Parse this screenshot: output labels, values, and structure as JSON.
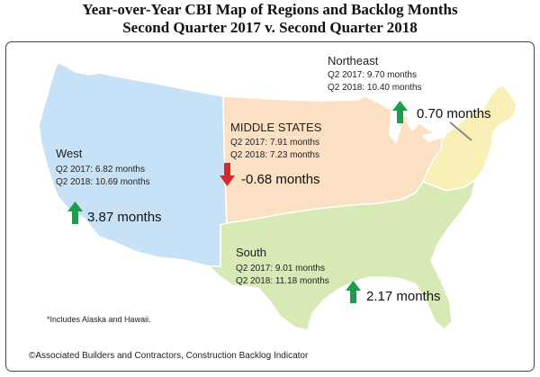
{
  "title": {
    "line1": "Year-over-Year CBI Map of Regions and Backlog Months",
    "line2": "Second Quarter 2017 v. Second Quarter 2018"
  },
  "regions": {
    "west": {
      "name": "West",
      "q2_2017": "Q2 2017:  6.82 months",
      "q2_2018": "Q2 2018:  10.69 months",
      "change": "3.87 months",
      "direction": "up",
      "color": "#c7e2f6"
    },
    "middle": {
      "name": "MIDDLE STATES",
      "q2_2017": "Q2 2017:  7.91 months",
      "q2_2018": "Q2 2018:  7.23 months",
      "change": "-0.68 months",
      "direction": "down",
      "color": "#fbe0c4"
    },
    "northeast": {
      "name": "Northeast",
      "q2_2017": "Q2 2017:  9.70 months",
      "q2_2018": "Q2 2018:  10.40 months",
      "change": "0.70 months",
      "direction": "up",
      "color": "#f8f0b6"
    },
    "south": {
      "name": "South",
      "q2_2017": "Q2 2017:  9.01 months",
      "q2_2018": "Q2 2018:  11.18 months",
      "change": "2.17 months",
      "direction": "up",
      "color": "#d7e9b5"
    }
  },
  "colors": {
    "up_arrow": "#1f9b4f",
    "down_arrow": "#d8262a"
  },
  "footnote": "*Includes Alaska and Hawaii.",
  "source": "©Associated Builders and Contractors, Construction Backlog Indicator"
}
